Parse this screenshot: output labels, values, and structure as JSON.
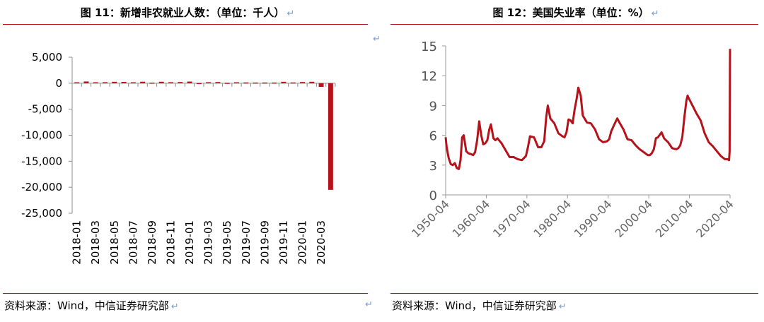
{
  "left": {
    "title": "图 11：新增非农就业人数：（单位：千人）",
    "pilcrow": "↵",
    "source": "资料来源：Wind，中信证券研究部",
    "chart_data": {
      "type": "bar",
      "title": "图 11：新增非农就业人数：（单位：千人）",
      "ylim": [
        -25000,
        5000
      ],
      "yticks": [
        5000,
        0,
        -5000,
        -10000,
        -15000,
        -20000,
        -25000
      ],
      "ytick_labels": [
        "5,000",
        "0",
        "-5,000",
        "-10,000",
        "-15,000",
        "-20,000",
        "-25,000"
      ],
      "xtick_labels": [
        "2018-01",
        "2018-03",
        "2018-05",
        "2018-07",
        "2018-09",
        "2018-11",
        "2019-01",
        "2019-03",
        "2019-05",
        "2019-07",
        "2019-09",
        "2019-11",
        "2020-01",
        "2020-03"
      ],
      "categories": [
        "2018-01",
        "2018-02",
        "2018-03",
        "2018-04",
        "2018-05",
        "2018-06",
        "2018-07",
        "2018-08",
        "2018-09",
        "2018-10",
        "2018-11",
        "2018-12",
        "2019-01",
        "2019-02",
        "2019-03",
        "2019-04",
        "2019-05",
        "2019-06",
        "2019-07",
        "2019-08",
        "2019-09",
        "2019-10",
        "2019-11",
        "2019-12",
        "2020-01",
        "2020-02",
        "2020-03",
        "2020-04"
      ],
      "values": [
        176,
        330,
        182,
        196,
        270,
        248,
        178,
        282,
        108,
        277,
        196,
        227,
        312,
        33,
        196,
        224,
        75,
        178,
        148,
        130,
        136,
        128,
        266,
        145,
        225,
        273,
        -701,
        -20500
      ],
      "color": "#b5121b"
    }
  },
  "right": {
    "title": "图 12：美国失业率（单位：%）",
    "pilcrow": "↵",
    "source": "资料来源：Wind，中信证券研究部",
    "chart_data": {
      "type": "line",
      "title": "图 12：美国失业率（单位：%）",
      "ylim": [
        0,
        15
      ],
      "yticks": [
        0,
        3,
        6,
        9,
        12,
        15
      ],
      "xlim": [
        1950.25,
        2020.25
      ],
      "xticks": [
        1950.25,
        1960.25,
        1970.25,
        1980.25,
        1990.25,
        2000.25,
        2010.25,
        2020.25
      ],
      "xtick_labels": [
        "1950-04",
        "1960-04",
        "1970-04",
        "1980-04",
        "1990-04",
        "2000-04",
        "2010-04",
        "2020-04"
      ],
      "series": [
        {
          "x": [
            1950.25,
            1950.5,
            1951.0,
            1951.5,
            1952.0,
            1952.5,
            1953.0,
            1953.5,
            1953.9,
            1954.3,
            1954.7,
            1955.3,
            1955.8,
            1956.5,
            1957.0,
            1957.5,
            1958.0,
            1958.5,
            1959.0,
            1959.5,
            1960.0,
            1960.5,
            1961.0,
            1961.4,
            1962.0,
            1962.5,
            1963.0,
            1964.0,
            1965.0,
            1966.0,
            1967.0,
            1968.0,
            1969.0,
            1970.0,
            1970.5,
            1971.0,
            1972.0,
            1973.0,
            1973.8,
            1974.5,
            1975.0,
            1975.4,
            1976.0,
            1977.0,
            1978.0,
            1979.0,
            1979.5,
            1980.0,
            1980.5,
            1981.0,
            1981.5,
            1982.0,
            1982.5,
            1982.9,
            1983.5,
            1984.0,
            1985.0,
            1986.0,
            1987.0,
            1988.0,
            1989.0,
            1990.0,
            1990.5,
            1991.0,
            1992.0,
            1992.5,
            1993.0,
            1994.0,
            1995.0,
            1996.0,
            1997.0,
            1998.0,
            1999.0,
            2000.0,
            2000.5,
            2001.0,
            2001.5,
            2002.0,
            2002.5,
            2003.4,
            2004.0,
            2005.0,
            2006.0,
            2007.0,
            2007.5,
            2008.0,
            2008.5,
            2009.0,
            2009.5,
            2009.8,
            2010.0,
            2011.0,
            2012.0,
            2013.0,
            2014.0,
            2015.0,
            2016.0,
            2017.0,
            2018.0,
            2019.0,
            2019.6,
            2020.0,
            2020.15,
            2020.25
          ],
          "y": [
            5.8,
            4.8,
            3.7,
            3.1,
            3.0,
            3.2,
            2.7,
            2.6,
            3.5,
            5.8,
            6.0,
            4.4,
            4.2,
            4.1,
            4.0,
            4.3,
            5.5,
            7.4,
            6.0,
            5.1,
            5.2,
            5.5,
            6.6,
            7.1,
            5.7,
            5.5,
            5.7,
            5.2,
            4.5,
            3.8,
            3.8,
            3.6,
            3.5,
            3.9,
            4.8,
            5.9,
            5.8,
            4.8,
            4.8,
            5.4,
            7.8,
            9.0,
            7.7,
            7.2,
            6.2,
            5.9,
            5.8,
            6.3,
            7.6,
            7.5,
            7.2,
            8.6,
            9.7,
            10.8,
            10.0,
            8.0,
            7.3,
            7.2,
            6.6,
            5.6,
            5.3,
            5.4,
            5.6,
            6.4,
            7.3,
            7.7,
            7.3,
            6.6,
            5.6,
            5.5,
            5.0,
            4.6,
            4.3,
            4.0,
            4.0,
            4.2,
            4.6,
            5.7,
            5.8,
            6.3,
            5.7,
            5.3,
            4.7,
            4.6,
            4.7,
            5.0,
            5.8,
            7.8,
            9.5,
            10.0,
            9.8,
            9.0,
            8.2,
            7.5,
            6.2,
            5.3,
            4.9,
            4.4,
            3.9,
            3.6,
            3.6,
            3.5,
            4.4,
            14.7
          ],
          "color": "#b5121b"
        }
      ]
    }
  }
}
